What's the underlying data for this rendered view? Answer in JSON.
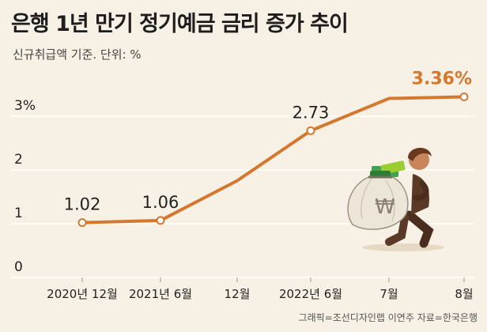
{
  "title": "은행 1년 만기 정기예금 금리 증가 추이",
  "subtitle": "신규취급액 기준. 단위: %",
  "credit": "그래픽=조선디자인랩 이연주 자료=한국은행",
  "colors": {
    "line": "#d5782f",
    "highlight": "#d5782f",
    "grid": "#ffffff",
    "background": "#f7f0e4",
    "text": "#222222"
  },
  "icons": [
    "money-bag-icon"
  ],
  "illustration_text": "₩",
  "chart_data": {
    "type": "line",
    "title": "은행 1년 만기 정기예금 금리 증가 추이",
    "xlabel": "",
    "ylabel": "",
    "ylim": [
      0,
      3.5
    ],
    "grid": true,
    "y_ticks": [
      {
        "value": 0,
        "label": "0"
      },
      {
        "value": 1,
        "label": "1"
      },
      {
        "value": 2,
        "label": "2"
      },
      {
        "value": 3,
        "label": "3%"
      }
    ],
    "x_ticks": [
      "2020년 12월",
      "2021년 6월",
      "12월",
      "2022년 6월",
      "7월",
      "8월"
    ],
    "series": [
      {
        "points": [
          {
            "x": "2020년 12월",
            "y": 1.02,
            "label": "1.02"
          },
          {
            "x": "2021년 6월",
            "y": 1.06,
            "label": "1.06"
          },
          {
            "x": "12월",
            "y": 1.8,
            "label": ""
          },
          {
            "x": "2022년 6월",
            "y": 2.73,
            "label": "2.73"
          },
          {
            "x": "7월",
            "y": 3.33,
            "label": ""
          },
          {
            "x": "8월",
            "y": 3.36,
            "label": "3.36%"
          }
        ]
      }
    ]
  }
}
